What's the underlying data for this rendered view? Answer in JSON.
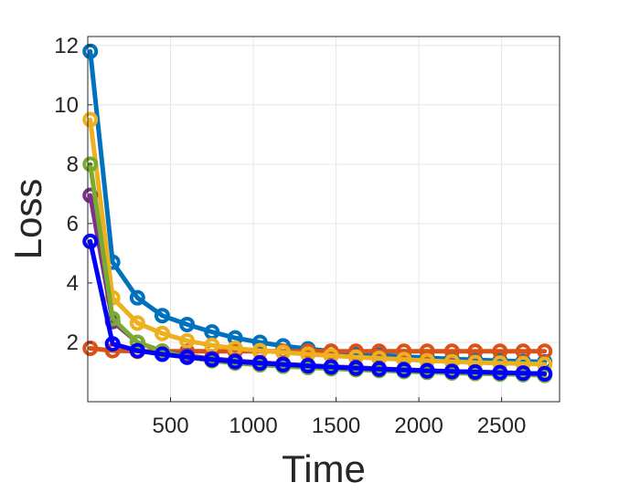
{
  "chart_data": {
    "type": "line",
    "title": "",
    "xlabel": "Time",
    "ylabel": "Loss",
    "xlim": [
      0,
      2850
    ],
    "ylim": [
      0,
      12.3
    ],
    "xticks": [
      500,
      1000,
      1500,
      2000,
      2500
    ],
    "yticks": [
      2,
      4,
      6,
      8,
      10,
      12
    ],
    "grid": true,
    "x": [
      15,
      150,
      300,
      450,
      600,
      750,
      890,
      1040,
      1180,
      1330,
      1470,
      1620,
      1760,
      1910,
      2050,
      2200,
      2340,
      2490,
      2630,
      2760
    ],
    "series": [
      {
        "color": "#0072BD",
        "values": [
          11.8,
          4.7,
          3.5,
          2.9,
          2.6,
          2.35,
          2.15,
          2.0,
          1.88,
          1.78,
          1.7,
          1.63,
          1.57,
          1.52,
          1.48,
          1.44,
          1.41,
          1.38,
          1.36,
          1.34
        ]
      },
      {
        "color": "#D95319",
        "values": [
          1.8,
          1.72,
          1.7,
          1.7,
          1.7,
          1.7,
          1.7,
          1.7,
          1.7,
          1.7,
          1.7,
          1.7,
          1.7,
          1.7,
          1.7,
          1.7,
          1.7,
          1.7,
          1.7,
          1.7
        ]
      },
      {
        "color": "#EDB120",
        "values": [
          9.5,
          3.5,
          2.65,
          2.3,
          2.05,
          1.9,
          1.8,
          1.72,
          1.66,
          1.6,
          1.55,
          1.5,
          1.46,
          1.42,
          1.38,
          1.35,
          1.32,
          1.3,
          1.28,
          1.26
        ]
      },
      {
        "color": "#7E2F8E",
        "values": [
          6.95,
          2.7,
          2.0,
          1.7,
          1.55,
          1.45,
          1.38,
          1.32,
          1.27,
          1.22,
          1.18,
          1.15,
          1.11,
          1.08,
          1.05,
          1.02,
          1.0,
          0.98,
          0.96,
          0.94
        ]
      },
      {
        "color": "#77AC30",
        "values": [
          8.0,
          2.8,
          2.0,
          1.7,
          1.5,
          1.38,
          1.3,
          1.24,
          1.19,
          1.15,
          1.11,
          1.08,
          1.05,
          1.02,
          0.99,
          0.97,
          0.95,
          0.93,
          0.91,
          0.89
        ]
      },
      {
        "color": "#0000FF",
        "values": [
          5.4,
          1.95,
          1.72,
          1.6,
          1.5,
          1.42,
          1.35,
          1.3,
          1.25,
          1.21,
          1.17,
          1.13,
          1.1,
          1.07,
          1.04,
          1.02,
          1.0,
          0.98,
          0.96,
          0.94
        ]
      }
    ]
  }
}
